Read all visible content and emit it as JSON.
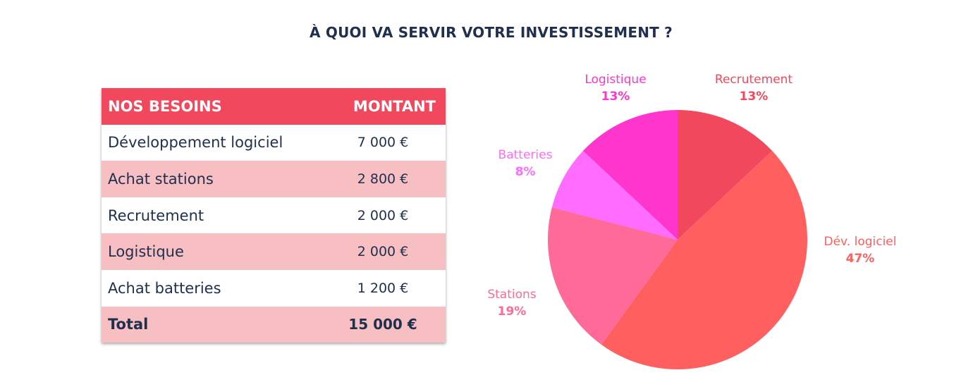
{
  "title": "À QUOI VA SERVIR VOTRE INVESTISSEMENT ?",
  "table": {
    "headers": [
      "NOS BESOINS",
      "MONTANT"
    ],
    "rows": [
      {
        "label": "Développement logiciel",
        "amount": "7 000 €"
      },
      {
        "label": "Achat stations",
        "amount": "2 800 €"
      },
      {
        "label": "Recrutement",
        "amount": "2 000 €"
      },
      {
        "label": "Logistique",
        "amount": "2 000 €"
      },
      {
        "label": "Achat batteries",
        "amount": "1 200 €"
      }
    ],
    "total": {
      "label": "Total",
      "amount": "15 000 €"
    }
  },
  "colors": {
    "header_bg": "#f2485d",
    "alt_row_bg": "#f7bfc1",
    "text": "#1e2f4f"
  },
  "chart_data": {
    "type": "pie",
    "slices": [
      {
        "label": "Recrutement",
        "value": 13,
        "pct_label": "13%",
        "color": "#f2485d"
      },
      {
        "label": "Dév. logiciel",
        "value": 47,
        "pct_label": "47%",
        "color": "#ff5f5f"
      },
      {
        "label": "Stations",
        "value": 19,
        "pct_label": "19%",
        "color": "#ff6a99"
      },
      {
        "label": "Batteries",
        "value": 8,
        "pct_label": "8%",
        "color": "#ff6cff"
      },
      {
        "label": "Logistique",
        "value": 13,
        "pct_label": "13%",
        "color": "#ff36cd"
      }
    ]
  }
}
